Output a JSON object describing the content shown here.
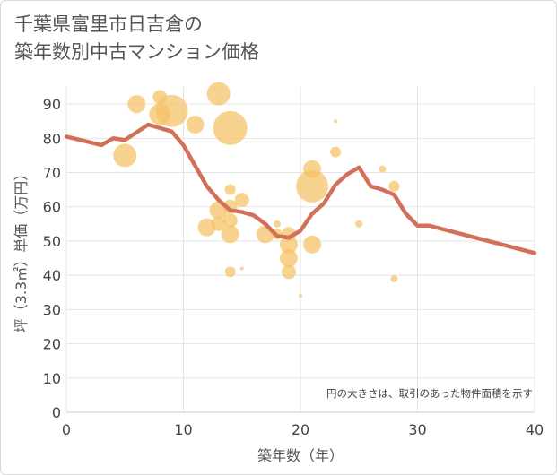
{
  "chart_data": {
    "type": "scatter",
    "title": "千葉県富里市日吉倉の築年数別中古マンション価格",
    "title_lines": [
      "千葉県富里市日吉倉の",
      "築年数別中古マンション価格"
    ],
    "xlabel": "築年数（年）",
    "ylabel": "坪（3.3㎡）単価（万円）",
    "xlim": [
      0,
      40
    ],
    "ylim": [
      0,
      95
    ],
    "x_ticks": [
      0,
      10,
      20,
      30,
      40
    ],
    "y_ticks": [
      0,
      10,
      20,
      30,
      40,
      50,
      60,
      70,
      80,
      90
    ],
    "grid": true,
    "note": "円の大きさは、取引のあった物件面積を示す",
    "colors": {
      "bubble": "#f5c264",
      "line": "#d2705a",
      "grid": "#e5e5e5"
    },
    "bubbles": [
      {
        "x": 5,
        "y": 75,
        "r": 13
      },
      {
        "x": 6,
        "y": 90,
        "r": 10
      },
      {
        "x": 8,
        "y": 92,
        "r": 8
      },
      {
        "x": 8,
        "y": 87,
        "r": 12
      },
      {
        "x": 9,
        "y": 88,
        "r": 18
      },
      {
        "x": 11,
        "y": 84,
        "r": 10
      },
      {
        "x": 12,
        "y": 54,
        "r": 10
      },
      {
        "x": 13,
        "y": 93,
        "r": 13
      },
      {
        "x": 13,
        "y": 59,
        "r": 10
      },
      {
        "x": 13,
        "y": 55,
        "r": 8
      },
      {
        "x": 14,
        "y": 83,
        "r": 19
      },
      {
        "x": 14,
        "y": 65,
        "r": 6
      },
      {
        "x": 14,
        "y": 60,
        "r": 8
      },
      {
        "x": 14,
        "y": 56,
        "r": 8
      },
      {
        "x": 14,
        "y": 52,
        "r": 10
      },
      {
        "x": 14,
        "y": 41,
        "r": 6
      },
      {
        "x": 15,
        "y": 62,
        "r": 8
      },
      {
        "x": 15,
        "y": 42,
        "r": 2
      },
      {
        "x": 17,
        "y": 52,
        "r": 10
      },
      {
        "x": 18,
        "y": 55,
        "r": 4
      },
      {
        "x": 18,
        "y": 52,
        "r": 6
      },
      {
        "x": 19,
        "y": 52,
        "r": 8
      },
      {
        "x": 19,
        "y": 49,
        "r": 10
      },
      {
        "x": 19,
        "y": 45,
        "r": 10
      },
      {
        "x": 19,
        "y": 41,
        "r": 8
      },
      {
        "x": 20,
        "y": 34,
        "r": 2
      },
      {
        "x": 21,
        "y": 71,
        "r": 10
      },
      {
        "x": 21,
        "y": 66,
        "r": 18
      },
      {
        "x": 21,
        "y": 49,
        "r": 10
      },
      {
        "x": 23,
        "y": 85,
        "r": 2
      },
      {
        "x": 23,
        "y": 76,
        "r": 6
      },
      {
        "x": 25,
        "y": 55,
        "r": 4
      },
      {
        "x": 27,
        "y": 71,
        "r": 4
      },
      {
        "x": 28,
        "y": 66,
        "r": 6
      },
      {
        "x": 28,
        "y": 39,
        "r": 4
      }
    ],
    "trend_line": {
      "x": [
        0,
        3,
        4,
        5,
        7,
        8,
        9,
        10,
        11,
        12,
        13,
        14,
        15,
        16,
        17,
        18,
        19,
        20,
        21,
        22,
        23,
        24,
        25,
        26,
        27,
        28,
        29,
        30,
        31,
        40
      ],
      "y": [
        80.5,
        78,
        80,
        79.5,
        84,
        83,
        82,
        78,
        72,
        66,
        62,
        59,
        58.5,
        57.5,
        55,
        51.5,
        51,
        53,
        58,
        61,
        66.5,
        69.5,
        71.5,
        66,
        65,
        63.5,
        58,
        54.5,
        54.5,
        46.5
      ]
    }
  }
}
